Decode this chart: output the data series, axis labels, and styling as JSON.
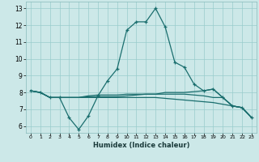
{
  "xlabel": "Humidex (Indice chaleur)",
  "bg_color": "#cce8e8",
  "grid_color": "#99cccc",
  "line_color": "#1a6e6e",
  "xlim": [
    -0.5,
    23.5
  ],
  "ylim": [
    5.6,
    13.4
  ],
  "xticks": [
    0,
    1,
    2,
    3,
    4,
    5,
    6,
    7,
    8,
    9,
    10,
    11,
    12,
    13,
    14,
    15,
    16,
    17,
    18,
    19,
    20,
    21,
    22,
    23
  ],
  "yticks": [
    6,
    7,
    8,
    9,
    10,
    11,
    12,
    13
  ],
  "line1_x": [
    0,
    1,
    2,
    3,
    4,
    5,
    6,
    7,
    8,
    9,
    10,
    11,
    12,
    13,
    14,
    15,
    16,
    17,
    18,
    19,
    20,
    21,
    22,
    23
  ],
  "line1_y": [
    8.1,
    8.0,
    7.7,
    7.7,
    6.5,
    5.8,
    6.6,
    7.8,
    8.7,
    9.4,
    11.7,
    12.2,
    12.2,
    13.0,
    11.9,
    9.8,
    9.5,
    8.5,
    8.1,
    8.2,
    7.7,
    7.2,
    7.1,
    6.5
  ],
  "line2_x": [
    0,
    1,
    2,
    3,
    4,
    5,
    6,
    7,
    8,
    9,
    10,
    11,
    12,
    13,
    14,
    15,
    16,
    17,
    18,
    19,
    20,
    21,
    22,
    23
  ],
  "line2_y": [
    8.1,
    8.0,
    7.7,
    7.7,
    7.7,
    7.7,
    7.8,
    7.85,
    7.85,
    7.85,
    7.9,
    7.9,
    7.9,
    7.9,
    7.9,
    7.9,
    7.9,
    7.85,
    7.8,
    7.7,
    7.7,
    7.2,
    7.1,
    6.5
  ],
  "line3_x": [
    0,
    1,
    2,
    3,
    4,
    5,
    6,
    7,
    8,
    9,
    10,
    11,
    12,
    13,
    14,
    15,
    16,
    17,
    18,
    19,
    20,
    21,
    22,
    23
  ],
  "line3_y": [
    8.1,
    8.0,
    7.7,
    7.7,
    7.7,
    7.7,
    7.75,
    7.75,
    7.75,
    7.75,
    7.8,
    7.85,
    7.9,
    7.9,
    8.0,
    8.0,
    8.0,
    8.05,
    8.1,
    8.2,
    7.7,
    7.2,
    7.1,
    6.5
  ],
  "line4_x": [
    0,
    1,
    2,
    3,
    4,
    5,
    6,
    7,
    8,
    9,
    10,
    11,
    12,
    13,
    14,
    15,
    16,
    17,
    18,
    19,
    20,
    21,
    22,
    23
  ],
  "line4_y": [
    8.1,
    8.0,
    7.7,
    7.7,
    7.7,
    7.7,
    7.7,
    7.7,
    7.7,
    7.7,
    7.7,
    7.7,
    7.7,
    7.7,
    7.65,
    7.6,
    7.55,
    7.5,
    7.45,
    7.4,
    7.3,
    7.2,
    7.1,
    6.5
  ]
}
